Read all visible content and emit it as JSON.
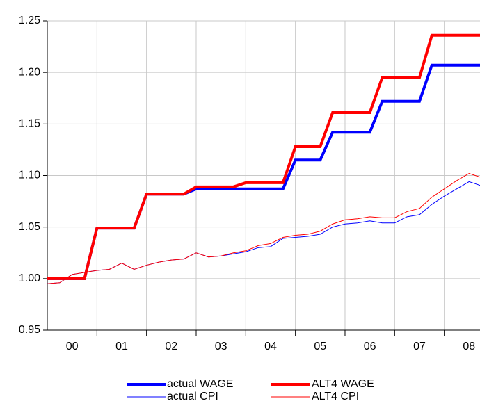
{
  "chart_data": {
    "type": "line",
    "x": [
      0,
      0.25,
      0.5,
      0.75,
      1,
      1.25,
      1.5,
      1.75,
      2,
      2.25,
      2.5,
      2.75,
      3,
      3.25,
      3.5,
      3.75,
      4,
      4.25,
      4.5,
      4.75,
      5,
      5.25,
      5.5,
      5.75,
      6,
      6.25,
      6.5,
      6.75,
      7,
      7.25,
      7.5,
      7.75,
      8,
      8.25,
      8.5,
      8.75
    ],
    "series": [
      {
        "name": "actual WAGE",
        "color": "#0000ff",
        "width": 4,
        "values": [
          1.0,
          1.0,
          1.0,
          1.0,
          1.049,
          1.049,
          1.049,
          1.049,
          1.082,
          1.082,
          1.082,
          1.082,
          1.087,
          1.087,
          1.087,
          1.087,
          1.087,
          1.087,
          1.087,
          1.087,
          1.115,
          1.115,
          1.115,
          1.142,
          1.142,
          1.142,
          1.142,
          1.172,
          1.172,
          1.172,
          1.172,
          1.207,
          1.207,
          1.207,
          1.207,
          1.207
        ]
      },
      {
        "name": "ALT4 WAGE",
        "color": "#ff0000",
        "width": 4,
        "values": [
          1.0,
          1.0,
          1.0,
          1.0,
          1.049,
          1.049,
          1.049,
          1.049,
          1.082,
          1.082,
          1.082,
          1.082,
          1.089,
          1.089,
          1.089,
          1.089,
          1.093,
          1.093,
          1.093,
          1.093,
          1.128,
          1.128,
          1.128,
          1.161,
          1.161,
          1.161,
          1.161,
          1.195,
          1.195,
          1.195,
          1.195,
          1.236,
          1.236,
          1.236,
          1.236,
          1.236
        ]
      },
      {
        "name": "actual CPI",
        "color": "#0000ff",
        "width": 1,
        "values": [
          0.995,
          0.996,
          1.004,
          1.006,
          1.008,
          1.009,
          1.015,
          1.009,
          1.013,
          1.016,
          1.018,
          1.019,
          1.025,
          1.021,
          1.022,
          1.024,
          1.026,
          1.03,
          1.031,
          1.039,
          1.04,
          1.041,
          1.043,
          1.05,
          1.053,
          1.054,
          1.056,
          1.054,
          1.054,
          1.06,
          1.062,
          1.072,
          1.08,
          1.087,
          1.094,
          1.09
        ]
      },
      {
        "name": "ALT4 CPI",
        "color": "#ff0000",
        "width": 1,
        "values": [
          0.995,
          0.996,
          1.004,
          1.006,
          1.008,
          1.009,
          1.015,
          1.009,
          1.013,
          1.016,
          1.018,
          1.019,
          1.025,
          1.021,
          1.022,
          1.025,
          1.027,
          1.032,
          1.034,
          1.04,
          1.042,
          1.043,
          1.046,
          1.053,
          1.057,
          1.058,
          1.06,
          1.059,
          1.059,
          1.065,
          1.068,
          1.079,
          1.087,
          1.095,
          1.102,
          1.098
        ]
      }
    ],
    "xlim": [
      0,
      8.72
    ],
    "xticks": [
      {
        "value": 0.5,
        "label": "00"
      },
      {
        "value": 1.5,
        "label": "01"
      },
      {
        "value": 2.5,
        "label": "02"
      },
      {
        "value": 3.5,
        "label": "03"
      },
      {
        "value": 4.5,
        "label": "04"
      },
      {
        "value": 5.5,
        "label": "05"
      },
      {
        "value": 6.5,
        "label": "06"
      },
      {
        "value": 7.5,
        "label": "07"
      },
      {
        "value": 8.5,
        "label": "08"
      }
    ],
    "xgrid": [
      1,
      2,
      3,
      4,
      5,
      6,
      7,
      8
    ],
    "ylim": [
      0.95,
      1.25
    ],
    "yticks": [
      0.95,
      {
        "value": 1,
        "label": "1.00"
      },
      1.05,
      {
        "value": 1.1,
        "label": "1.10"
      },
      1.15,
      {
        "value": 1.2,
        "label": "1.20"
      },
      1.25
    ],
    "grid": true,
    "legend": "bottom"
  }
}
